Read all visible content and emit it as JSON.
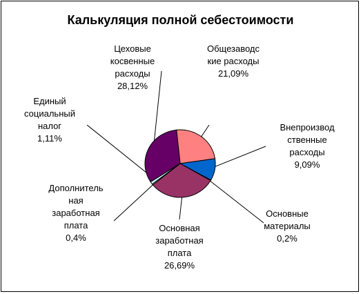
{
  "chart_data": {
    "type": "pie",
    "title": "Калькуляция полной себестоимости",
    "slices": [
      {
        "name": "Общезаводс кие расходы",
        "label": "Общезаводс\nкие расходы\n21,09%",
        "value": 21.09,
        "color": "#FF8080"
      },
      {
        "name": "Внепроизвод ственные расходы",
        "label": "Внепроизвод\nственные\nрасходы\n9,09%",
        "value": 9.09,
        "color": "#0066CC"
      },
      {
        "name": "Основные материалы",
        "label": "Основные\nматериалы\n0,2%",
        "value": 0.2,
        "color": "#FFFFFF"
      },
      {
        "name": "Основная заработная плата",
        "label": "Основная\nзаработная\nплата\n26,69%",
        "value": 26.69,
        "color": "#993366"
      },
      {
        "name": "Дополнитель ная заработная плата",
        "label": "Дополнитель\nная\nзаработная\nплата\n0,4%",
        "value": 0.4,
        "color": "#FFFFCC"
      },
      {
        "name": "Единый социальный налог",
        "label": "Единый\nсоциальный\nналог\n1,11%",
        "value": 1.11,
        "color": "#CCFFFF"
      },
      {
        "name": "Цеховые косвенные расходы",
        "label": "Цеховые\nкосвенные\nрасходы\n28,12%",
        "value": 28.12,
        "color": "#660066"
      }
    ],
    "legend": "none"
  }
}
